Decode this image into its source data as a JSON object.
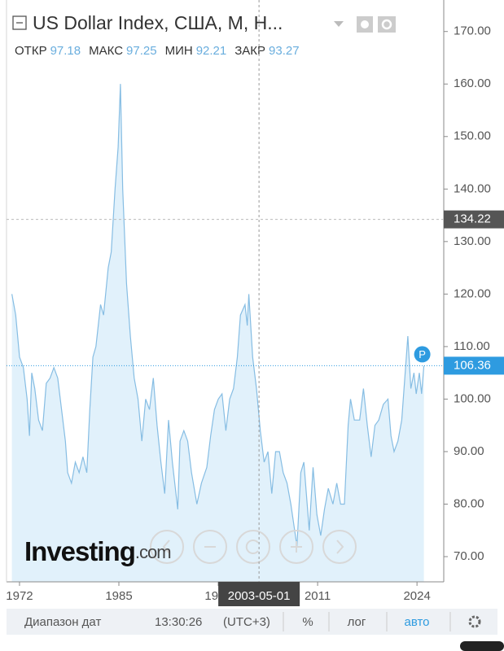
{
  "chart_data": {
    "type": "area",
    "title": "US Dollar Index, США, М, Н...",
    "ohlc": [
      {
        "label": "ОТКР",
        "value": 97.18
      },
      {
        "label": "МАКС",
        "value": 97.25
      },
      {
        "label": "МИН",
        "value": 92.21
      },
      {
        "label": "ЗАКР",
        "value": 93.27
      }
    ],
    "x": [
      1971.0,
      1971.5,
      1972.0,
      1972.5,
      1973.0,
      1973.3,
      1973.6,
      1974.0,
      1974.5,
      1975.0,
      1975.5,
      1976.0,
      1976.5,
      1977.0,
      1977.5,
      1978.0,
      1978.3,
      1978.8,
      1979.3,
      1979.8,
      1980.3,
      1980.8,
      1981.2,
      1981.6,
      1982.0,
      1982.6,
      1983.0,
      1983.6,
      1984.0,
      1984.5,
      1984.9,
      1985.2,
      1985.5,
      1986.0,
      1986.5,
      1987.0,
      1987.5,
      1988.0,
      1988.5,
      1989.0,
      1989.5,
      1990.0,
      1990.5,
      1991.0,
      1991.5,
      1992.0,
      1992.7,
      1993.0,
      1993.5,
      1994.0,
      1994.5,
      1995.2,
      1995.8,
      1996.5,
      1997.0,
      1997.5,
      1998.0,
      1998.5,
      1999.0,
      1999.5,
      2000.0,
      2000.5,
      2000.9,
      2001.5,
      2001.8,
      2002.0,
      2002.5,
      2003.0,
      2003.5,
      2004.0,
      2004.5,
      2005.0,
      2005.5,
      2006.0,
      2006.5,
      2007.0,
      2007.5,
      2008.0,
      2008.3,
      2008.8,
      2009.2,
      2009.9,
      2010.4,
      2010.9,
      2011.4,
      2011.9,
      2012.4,
      2013.0,
      2013.5,
      2014.0,
      2014.5,
      2015.0,
      2015.3,
      2015.8,
      2016.5,
      2017.0,
      2017.5,
      2018.0,
      2018.5,
      2019.0,
      2019.6,
      2020.2,
      2020.6,
      2021.0,
      2021.5,
      2022.0,
      2022.5,
      2022.8,
      2023.2,
      2023.6,
      2023.9,
      2024.3,
      2024.6,
      2024.9
    ],
    "series": [
      {
        "color": "#86bde3",
        "values": [
          120,
          116,
          108,
          106,
          100,
          93,
          105,
          102,
          96,
          94,
          103,
          104,
          106,
          104,
          98,
          92,
          86,
          84,
          88,
          86,
          89,
          86,
          98,
          108,
          110,
          118,
          116,
          125,
          128,
          140,
          148,
          160,
          140,
          122,
          112,
          104,
          100,
          92,
          100,
          98,
          104,
          95,
          88,
          82,
          96,
          88,
          79,
          92,
          94,
          92,
          86,
          80,
          84,
          87,
          93,
          98,
          100,
          101,
          94,
          100,
          102,
          108,
          116,
          118,
          114,
          120,
          108,
          102,
          94,
          88,
          90,
          82,
          90,
          90,
          86,
          84,
          80,
          75,
          72,
          86,
          88,
          75,
          87,
          78,
          74,
          79,
          83,
          80,
          84,
          80,
          80,
          95,
          100,
          96,
          96,
          102,
          95,
          89,
          95,
          96,
          99,
          100,
          93,
          90,
          92,
          96,
          106,
          112,
          102,
          105,
          101,
          105,
          101,
          106.36
        ]
      }
    ],
    "xlim": [
      1970.3,
      2027.5
    ],
    "ylim": [
      65.2,
      176.0
    ],
    "xticks": [
      1972,
      1985,
      1998,
      2011,
      2024
    ],
    "yticks": [
      {
        "value": 70,
        "label": "70.00"
      },
      {
        "value": 80,
        "label": "80.00"
      },
      {
        "value": 90,
        "label": "90.00"
      },
      {
        "value": 100,
        "label": "100.00"
      },
      {
        "value": 110,
        "label": "110.00"
      },
      {
        "value": 120,
        "label": "120.00"
      },
      {
        "value": 130,
        "label": "130.00"
      },
      {
        "value": 140,
        "label": "140.00"
      },
      {
        "value": 150,
        "label": "150.00"
      },
      {
        "value": 160,
        "label": "160.00"
      },
      {
        "value": 170,
        "label": "170.00"
      }
    ],
    "crosshair": {
      "x_label": "2003-05-01",
      "y": 134.22
    },
    "last_value": 106.36,
    "marker_label": "P",
    "logo": "Investing",
    "logo_suffix": ".com",
    "toolbar": {
      "range": "Диапазон дат",
      "time": "13:30:26",
      "tz": "(UTC+3)",
      "percent": "%",
      "log": "лог",
      "auto": "авто"
    }
  }
}
